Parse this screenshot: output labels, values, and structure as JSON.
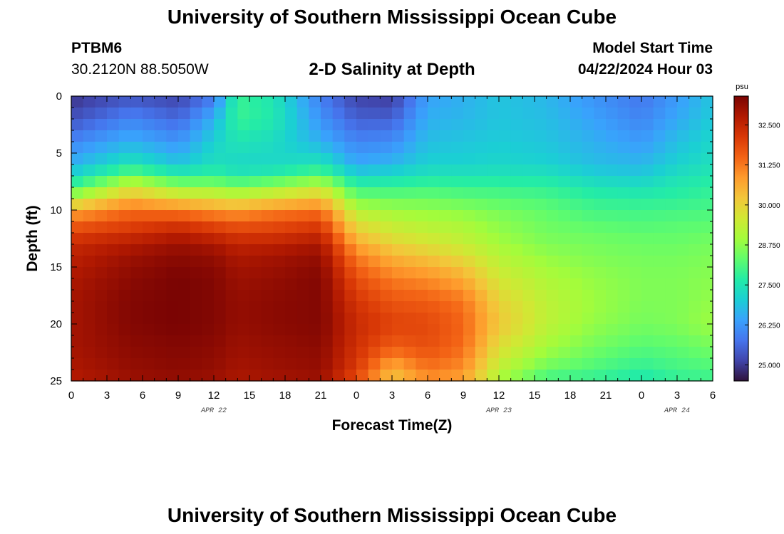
{
  "header": {
    "title": "University of Southern Mississippi Ocean Cube",
    "station_id": "PTBM6",
    "station_coords": "30.2120N  88.5050W",
    "chart_title": "2-D Salinity at Depth",
    "model_start_label": "Model Start Time",
    "model_start_value": "04/22/2024 Hour 03"
  },
  "footer": {
    "title": "University of Southern Mississippi Ocean Cube"
  },
  "chart_data": {
    "type": "heatmap",
    "title": "2-D Salinity at Depth",
    "xlabel": "Forecast Time(Z)",
    "ylabel": "Depth (ft)",
    "x_tick_labels": [
      "0",
      "3",
      "6",
      "9",
      "12",
      "15",
      "18",
      "21",
      "0",
      "3",
      "6",
      "9",
      "12",
      "15",
      "18",
      "21",
      "0",
      "3",
      "6"
    ],
    "date_labels": [
      {
        "label": "APR 22",
        "tick_index": 4
      },
      {
        "label": "APR 23",
        "tick_index": 12
      },
      {
        "label": "APR 24",
        "tick_index": 17
      }
    ],
    "y_tick_labels": [
      "0",
      "5",
      "10",
      "15",
      "20",
      "25"
    ],
    "ylim": [
      0,
      25
    ],
    "x_range_hours": [
      0,
      54
    ],
    "colorbar": {
      "unit": "psu",
      "min": 24.5,
      "max": 33.4,
      "tick_labels": [
        "25.000",
        "26.250",
        "27.500",
        "28.750",
        "30.000",
        "31.250",
        "32.500"
      ],
      "colors": [
        "#30123b",
        "#4145ab",
        "#4675ed",
        "#39a2fc",
        "#1bcfd4",
        "#24eca6",
        "#61fc6c",
        "#a4fc3b",
        "#d1e834",
        "#f3c63a",
        "#fe9b2d",
        "#f36315",
        "#d93806",
        "#b11901",
        "#7a0403"
      ]
    },
    "grid": {
      "time_step_hours": 1,
      "depth_step_ft": 1
    },
    "depths_ft": [
      0,
      2,
      4,
      6,
      7,
      8,
      9,
      10,
      11,
      12,
      13,
      14,
      16,
      18,
      20,
      22,
      24,
      25
    ],
    "salinity_profiles": [
      {
        "hour": 0,
        "values": [
          24.9,
          25.3,
          26.0,
          26.6,
          27.2,
          28.0,
          29.2,
          30.6,
          31.4,
          32.0,
          32.4,
          32.6,
          32.8,
          32.9,
          32.9,
          32.9,
          32.8,
          32.7
        ]
      },
      {
        "hour": 5,
        "values": [
          25.3,
          26.0,
          26.6,
          27.5,
          28.5,
          29.6,
          30.5,
          31.4,
          31.8,
          32.3,
          32.7,
          33.0,
          33.2,
          33.3,
          33.3,
          33.2,
          33.1,
          33.0
        ]
      },
      {
        "hour": 9,
        "values": [
          25.1,
          25.6,
          26.2,
          26.9,
          27.8,
          28.8,
          30.0,
          31.2,
          32.0,
          32.6,
          33.0,
          33.2,
          33.4,
          33.4,
          33.4,
          33.3,
          33.2,
          33.1
        ]
      },
      {
        "hour": 12,
        "values": [
          25.8,
          26.6,
          27.1,
          27.4,
          27.9,
          28.8,
          29.8,
          30.9,
          31.7,
          32.3,
          32.8,
          33.1,
          33.3,
          33.3,
          33.3,
          33.2,
          33.1,
          33.0
        ]
      },
      {
        "hour": 14,
        "values": [
          27.9,
          27.9,
          27.5,
          27.2,
          27.6,
          28.6,
          29.6,
          30.8,
          31.5,
          32.1,
          32.5,
          32.8,
          33.0,
          33.1,
          33.1,
          33.0,
          32.9,
          32.8
        ]
      },
      {
        "hour": 17,
        "values": [
          27.5,
          27.6,
          27.3,
          27.2,
          27.8,
          28.9,
          29.9,
          31.1,
          31.7,
          32.1,
          32.6,
          32.9,
          33.1,
          33.2,
          33.2,
          33.1,
          33.0,
          32.9
        ]
      },
      {
        "hour": 21,
        "values": [
          25.9,
          26.2,
          26.6,
          27.5,
          28.3,
          29.4,
          30.3,
          31.3,
          31.9,
          32.4,
          32.8,
          33.1,
          33.3,
          33.3,
          33.3,
          33.2,
          33.1,
          33.0
        ]
      },
      {
        "hour": 24,
        "values": [
          25.1,
          25.5,
          26.0,
          26.5,
          27.2,
          27.9,
          28.5,
          29.2,
          29.7,
          30.2,
          30.7,
          31.2,
          31.8,
          32.2,
          32.4,
          32.3,
          32.1,
          31.8
        ]
      },
      {
        "hour": 27,
        "values": [
          25.0,
          25.5,
          26.1,
          26.7,
          27.3,
          27.9,
          28.4,
          28.9,
          29.3,
          29.6,
          30.0,
          30.5,
          31.2,
          31.7,
          32.0,
          31.6,
          30.5,
          30.2
        ]
      },
      {
        "hour": 30,
        "values": [
          26.4,
          26.6,
          26.8,
          27.1,
          27.5,
          28.0,
          28.4,
          28.8,
          29.1,
          29.4,
          29.7,
          30.2,
          31.0,
          31.6,
          31.9,
          31.8,
          31.3,
          30.9
        ]
      },
      {
        "hour": 33,
        "values": [
          26.6,
          26.7,
          26.9,
          27.1,
          27.5,
          27.9,
          28.3,
          28.7,
          29.0,
          29.2,
          29.4,
          29.8,
          30.6,
          31.3,
          31.5,
          31.4,
          31.0,
          30.7
        ]
      },
      {
        "hour": 36,
        "values": [
          26.9,
          26.9,
          27.0,
          27.2,
          27.5,
          27.9,
          28.2,
          28.5,
          28.7,
          28.8,
          29.0,
          29.2,
          29.6,
          30.0,
          30.2,
          29.8,
          29.3,
          29.0
        ]
      },
      {
        "hour": 40,
        "values": [
          26.7,
          26.8,
          26.9,
          27.1,
          27.5,
          27.8,
          28.1,
          28.3,
          28.4,
          28.5,
          28.6,
          28.8,
          29.1,
          29.3,
          29.3,
          29.0,
          28.4,
          27.9
        ]
      },
      {
        "hour": 44,
        "values": [
          26.2,
          26.4,
          26.6,
          26.8,
          27.1,
          27.5,
          27.8,
          28.0,
          28.2,
          28.4,
          28.5,
          28.6,
          28.8,
          28.9,
          28.8,
          28.5,
          28.1,
          27.8
        ]
      },
      {
        "hour": 48,
        "values": [
          25.8,
          26.0,
          26.3,
          26.7,
          27.0,
          27.4,
          27.7,
          28.0,
          28.1,
          28.3,
          28.4,
          28.5,
          28.6,
          28.6,
          28.5,
          28.2,
          27.8,
          27.5
        ]
      },
      {
        "hour": 51,
        "values": [
          26.3,
          26.5,
          26.8,
          27.1,
          27.4,
          27.6,
          27.8,
          28.0,
          28.2,
          28.3,
          28.4,
          28.5,
          28.6,
          28.6,
          28.6,
          28.3,
          28.0,
          27.8
        ]
      },
      {
        "hour": 54,
        "values": [
          26.9,
          27.0,
          27.2,
          27.4,
          27.6,
          27.8,
          27.9,
          28.1,
          28.2,
          28.4,
          28.5,
          28.6,
          28.7,
          28.8,
          28.9,
          28.5,
          28.1,
          27.9
        ]
      }
    ]
  }
}
